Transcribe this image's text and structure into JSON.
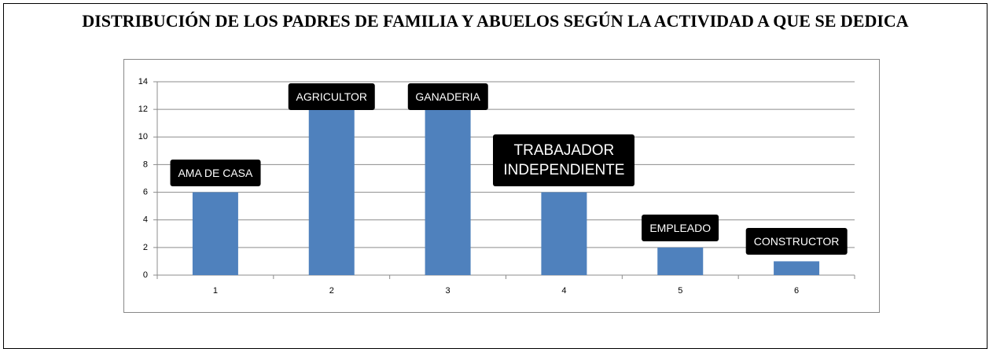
{
  "chart_data": {
    "type": "bar",
    "title": "DISTRIBUCIÓN DE LOS PADRES DE FAMILIA Y ABUELOS SEGÚN LA ACTIVIDAD A QUE SE DEDICA",
    "categories": [
      "1",
      "2",
      "3",
      "4",
      "5",
      "6"
    ],
    "values": [
      6,
      12,
      13,
      6,
      2,
      1
    ],
    "bar_labels": [
      "AMA DE CASA",
      "AGRICULTOR",
      "GANADERIA",
      "TRABAJADOR INDEPENDIENTE",
      "EMPLEADO",
      "CONSTRUCTOR"
    ],
    "color": "#4f81bd",
    "ylim": [
      0,
      14
    ],
    "yticks": [
      0,
      2,
      4,
      6,
      8,
      10,
      12,
      14
    ],
    "grid": true
  }
}
